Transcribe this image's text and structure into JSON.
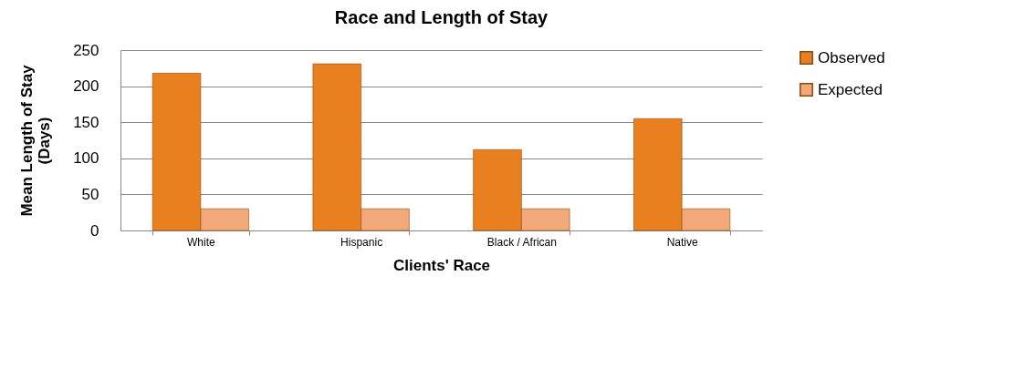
{
  "chart_data": {
    "type": "bar",
    "title": "Race and Length of Stay",
    "xlabel": "Clients' Race",
    "ylabel": "Mean Length of Stay (Days)",
    "categories": [
      "White",
      "Hispanic",
      "Black / African",
      "Native"
    ],
    "series": [
      {
        "name": "Observed",
        "color": "#e8801f",
        "values": [
          218,
          231,
          112,
          155
        ]
      },
      {
        "name": "Expected",
        "color": "#f2a878",
        "values": [
          30,
          30,
          30,
          30
        ]
      }
    ],
    "ylim": [
      0,
      250
    ],
    "yticks": [
      0,
      50,
      100,
      150,
      200,
      250
    ],
    "grid": "y",
    "legend": "right"
  }
}
